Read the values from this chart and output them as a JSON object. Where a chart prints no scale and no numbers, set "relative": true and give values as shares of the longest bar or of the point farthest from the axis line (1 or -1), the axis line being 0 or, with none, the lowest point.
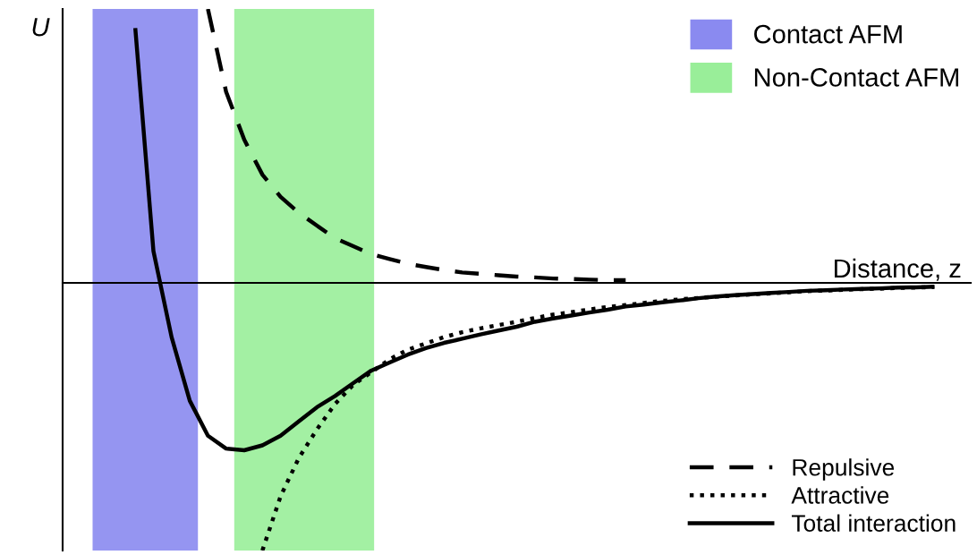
{
  "chart_data": {
    "type": "line",
    "relative": true,
    "xlabel": "Distance, z",
    "ylabel": "U",
    "tick_labels": false,
    "legend": "bottom right",
    "categories": [
      null,
      null,
      null,
      null,
      null,
      null,
      null,
      null,
      null,
      null,
      null,
      null,
      null,
      null,
      null,
      null,
      null,
      null,
      null,
      null,
      null,
      null,
      null,
      null,
      null,
      null,
      null,
      null,
      null,
      null,
      null,
      null,
      null,
      null,
      null,
      null,
      null,
      null,
      null,
      null,
      null,
      null,
      null,
      null,
      null,
      null,
      null,
      null,
      null,
      null,
      null
    ],
    "series": [
      {
        "name": "Repulsive",
        "color": "#000000",
        "line_style": "dashed",
        "values": [
          null,
          null,
          null,
          null,
          null,
          null,
          null,
          null,
          1.0,
          0.698,
          0.523,
          0.395,
          0.314,
          0.256,
          0.209,
          0.163,
          0.134,
          0.105,
          0.087,
          0.07,
          0.058,
          0.047,
          0.038,
          0.033,
          0.028,
          0.023,
          0.02,
          0.016,
          0.014,
          0.012,
          0.01,
          0.01,
          null,
          null,
          null,
          null,
          null,
          null,
          null,
          null,
          null,
          null,
          null,
          null,
          null,
          null,
          null,
          null,
          null,
          null,
          null
        ]
      },
      {
        "name": "Attractive",
        "color": "#000000",
        "line_style": "dotted",
        "values": [
          null,
          null,
          null,
          null,
          null,
          null,
          null,
          null,
          null,
          null,
          null,
          -0.977,
          -0.779,
          -0.64,
          -0.535,
          -0.442,
          -0.372,
          -0.326,
          -0.279,
          -0.244,
          -0.221,
          -0.198,
          -0.18,
          -0.166,
          -0.154,
          -0.142,
          -0.128,
          -0.116,
          -0.107,
          -0.097,
          -0.088,
          -0.081,
          -0.073,
          -0.066,
          -0.06,
          -0.055,
          -0.05,
          -0.046,
          -0.042,
          -0.038,
          -0.034,
          -0.03,
          -0.028,
          -0.025,
          -0.023,
          -0.021,
          -0.018,
          -0.017,
          -0.015,
          null,
          null
        ]
      },
      {
        "name": "Total interaction",
        "color": "#000000",
        "line_style": "solid",
        "values": [
          null,
          null,
          null,
          null,
          0.93,
          0.116,
          -0.198,
          -0.43,
          -0.558,
          -0.605,
          -0.611,
          -0.593,
          -0.558,
          -0.506,
          -0.454,
          -0.413,
          -0.366,
          -0.32,
          -0.291,
          -0.262,
          -0.238,
          -0.219,
          -0.204,
          -0.188,
          -0.174,
          -0.16,
          -0.142,
          -0.13,
          -0.119,
          -0.108,
          -0.098,
          -0.086,
          -0.079,
          -0.071,
          -0.064,
          -0.056,
          -0.05,
          -0.045,
          -0.041,
          -0.037,
          -0.033,
          -0.029,
          -0.027,
          -0.024,
          -0.022,
          -0.02,
          -0.017,
          -0.016,
          -0.014,
          null,
          null
        ]
      }
    ],
    "annotations": [
      "Contact AFM",
      "Non-Contact AFM"
    ]
  }
}
